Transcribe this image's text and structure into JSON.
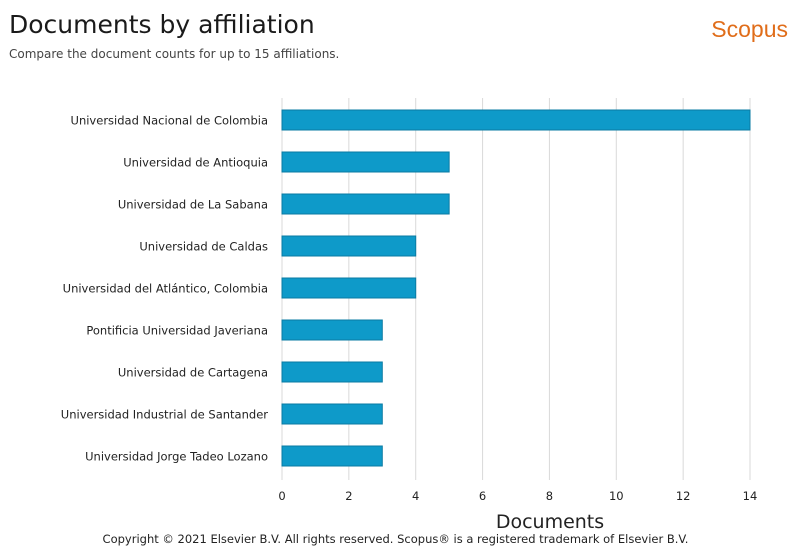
{
  "header": {
    "title": "Documents by affiliation",
    "subtitle": "Compare the document counts for up to 15 affiliations.",
    "brand": "Scopus"
  },
  "footer": {
    "copyright": "Copyright © 2021 Elsevier B.V. All rights reserved. Scopus® is a registered trademark of Elsevier B.V."
  },
  "colors": {
    "bar": "#0e9ac9",
    "bar_border": "#0a7ba3",
    "grid": "#d9d9d9",
    "brand": "#e06d1a"
  },
  "chart_data": {
    "type": "bar",
    "orientation": "horizontal",
    "categories": [
      "Universidad Nacional de Colombia",
      "Universidad de Antioquia",
      "Universidad de La Sabana",
      "Universidad de Caldas",
      "Universidad del Atlántico, Colombia",
      "Pontificia Universidad Javeriana",
      "Universidad de Cartagena",
      "Universidad Industrial de Santander",
      "Universidad Jorge Tadeo Lozano"
    ],
    "values": [
      14,
      5,
      5,
      4,
      4,
      3,
      3,
      3,
      3
    ],
    "xlabel": "Documents",
    "ylabel": "",
    "xlim": [
      0,
      14
    ],
    "xticks": [
      0,
      2,
      4,
      6,
      8,
      10,
      12,
      14
    ],
    "grid": true
  }
}
